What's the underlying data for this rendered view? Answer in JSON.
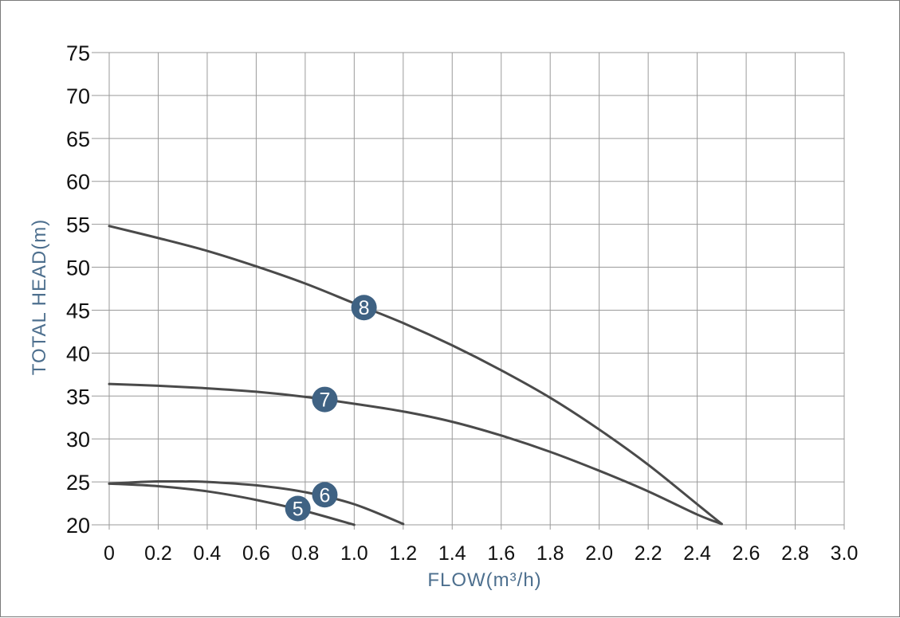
{
  "chart_data": {
    "type": "line",
    "title": "",
    "xlabel": "FLOW(m³/h)",
    "ylabel": "TOTAL HEAD(m)",
    "xlim": [
      0,
      3.0
    ],
    "ylim": [
      20,
      75
    ],
    "x_ticks": [
      "0",
      "0.2",
      "0.4",
      "0.6",
      "0.8",
      "1.0",
      "1.2",
      "1.4",
      "1.6",
      "1.8",
      "2.0",
      "2.2",
      "2.4",
      "2.6",
      "2.8",
      "3.0"
    ],
    "y_ticks": [
      "20",
      "25",
      "30",
      "35",
      "40",
      "45",
      "50",
      "55",
      "60",
      "65",
      "70",
      "75"
    ],
    "grid": true,
    "colors": {
      "line": "#4a4a4a",
      "grid": "#9a9a9a",
      "axis_title": "#4d6f8e",
      "badge": "#3f6283"
    },
    "series": [
      {
        "name": "5",
        "x": [
          0,
          0.2,
          0.4,
          0.6,
          0.8,
          1.0
        ],
        "y": [
          24.8,
          24.5,
          23.9,
          22.9,
          21.6,
          20.0
        ],
        "label_at": [
          0.77,
          21.9
        ]
      },
      {
        "name": "6",
        "x": [
          0,
          0.1,
          0.2,
          0.3,
          0.4,
          0.6,
          0.8,
          1.0,
          1.2
        ],
        "y": [
          24.8,
          24.95,
          25.05,
          25.05,
          25.0,
          24.6,
          23.8,
          22.4,
          20.1
        ],
        "label_at": [
          0.88,
          23.5
        ]
      },
      {
        "name": "7",
        "x": [
          0,
          0.2,
          0.4,
          0.6,
          0.8,
          1.0,
          1.2,
          1.4,
          1.6,
          1.8,
          2.0,
          2.2,
          2.4,
          2.5
        ],
        "y": [
          36.4,
          36.2,
          35.9,
          35.5,
          34.9,
          34.1,
          33.2,
          32.0,
          30.4,
          28.5,
          26.3,
          23.9,
          21.2,
          20.1
        ],
        "label_at": [
          0.88,
          34.6
        ]
      },
      {
        "name": "8",
        "x": [
          0,
          0.2,
          0.4,
          0.6,
          0.8,
          1.0,
          1.2,
          1.4,
          1.6,
          1.8,
          2.0,
          2.2,
          2.4,
          2.5
        ],
        "y": [
          54.8,
          53.4,
          51.9,
          50.1,
          48.1,
          45.8,
          43.5,
          40.9,
          38.0,
          34.8,
          31.1,
          27.0,
          22.4,
          20.1
        ],
        "label_at": [
          1.04,
          45.3
        ]
      }
    ]
  }
}
